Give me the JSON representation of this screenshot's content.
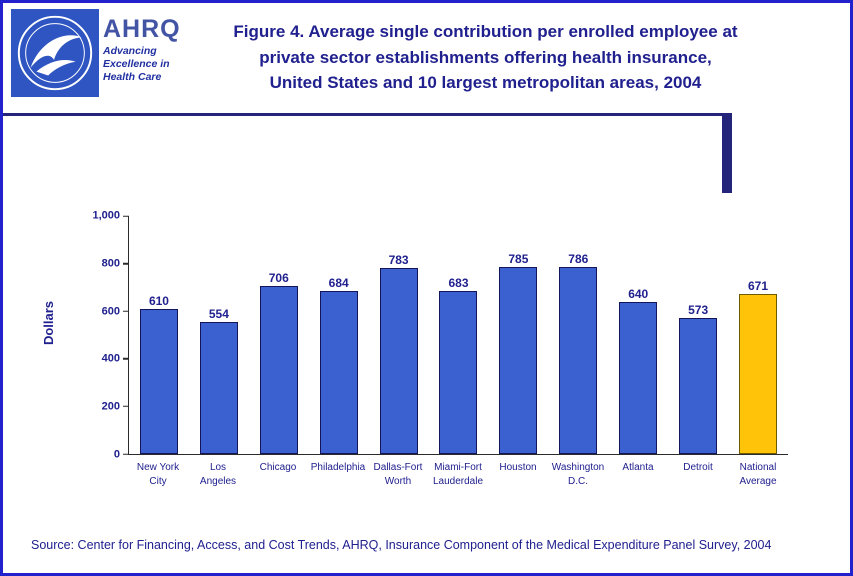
{
  "page": {
    "border_color": "#2222cc",
    "background": "#ffffff"
  },
  "header": {
    "ahrq": {
      "name": "AHRQ",
      "tagline_lines": [
        "Advancing",
        "Excellence in",
        "Health Care"
      ]
    },
    "title_lines": [
      "Figure 4. Average single contribution per enrolled employee at",
      "private sector establishments offering health insurance,",
      "United States and 10 largest metropolitan areas, 2004"
    ]
  },
  "chart_data": {
    "type": "bar",
    "title": "Figure 4. Average single contribution per enrolled employee at private sector establishments offering health insurance, United States and 10 largest metropolitan areas, 2004",
    "categories": [
      "New York City",
      "Los Angeles",
      "Chicago",
      "Philadelphia",
      "Dallas-Fort Worth",
      "Miami-Fort Lauderdale",
      "Houston",
      "Washington D.C.",
      "Atlanta",
      "Detroit",
      "National Average"
    ],
    "category_label_lines": [
      [
        "New York",
        "City"
      ],
      [
        "Los",
        "Angeles"
      ],
      [
        "Chicago"
      ],
      [
        "Philadelphia"
      ],
      [
        "Dallas-Fort",
        "Worth"
      ],
      [
        "Miami-Fort",
        "Lauderdale"
      ],
      [
        "Houston"
      ],
      [
        "Washington",
        "D.C."
      ],
      [
        "Atlanta"
      ],
      [
        "Detroit"
      ],
      [
        "National",
        "Average"
      ]
    ],
    "values": [
      610,
      554,
      706,
      684,
      783,
      683,
      785,
      786,
      640,
      573,
      671
    ],
    "xlabel": "",
    "ylabel": "Dollars",
    "ylim": [
      0,
      1000
    ],
    "yticks": [
      0,
      200,
      400,
      600,
      800,
      1000
    ],
    "ytick_labels": [
      "0",
      "200",
      "400",
      "600",
      "800",
      "1,000"
    ],
    "bar_color": "#3a61cf",
    "bar_border_color": "#14145a",
    "highlight_index": 10,
    "highlight_color": "#ffc40a",
    "highlight_border_color": "#6e5a00",
    "grid": false,
    "legend": false
  },
  "footer": {
    "source": "Source: Center for Financing, Access, and Cost Trends, AHRQ, Insurance Component of the Medical Expenditure Panel Survey, 2004"
  }
}
